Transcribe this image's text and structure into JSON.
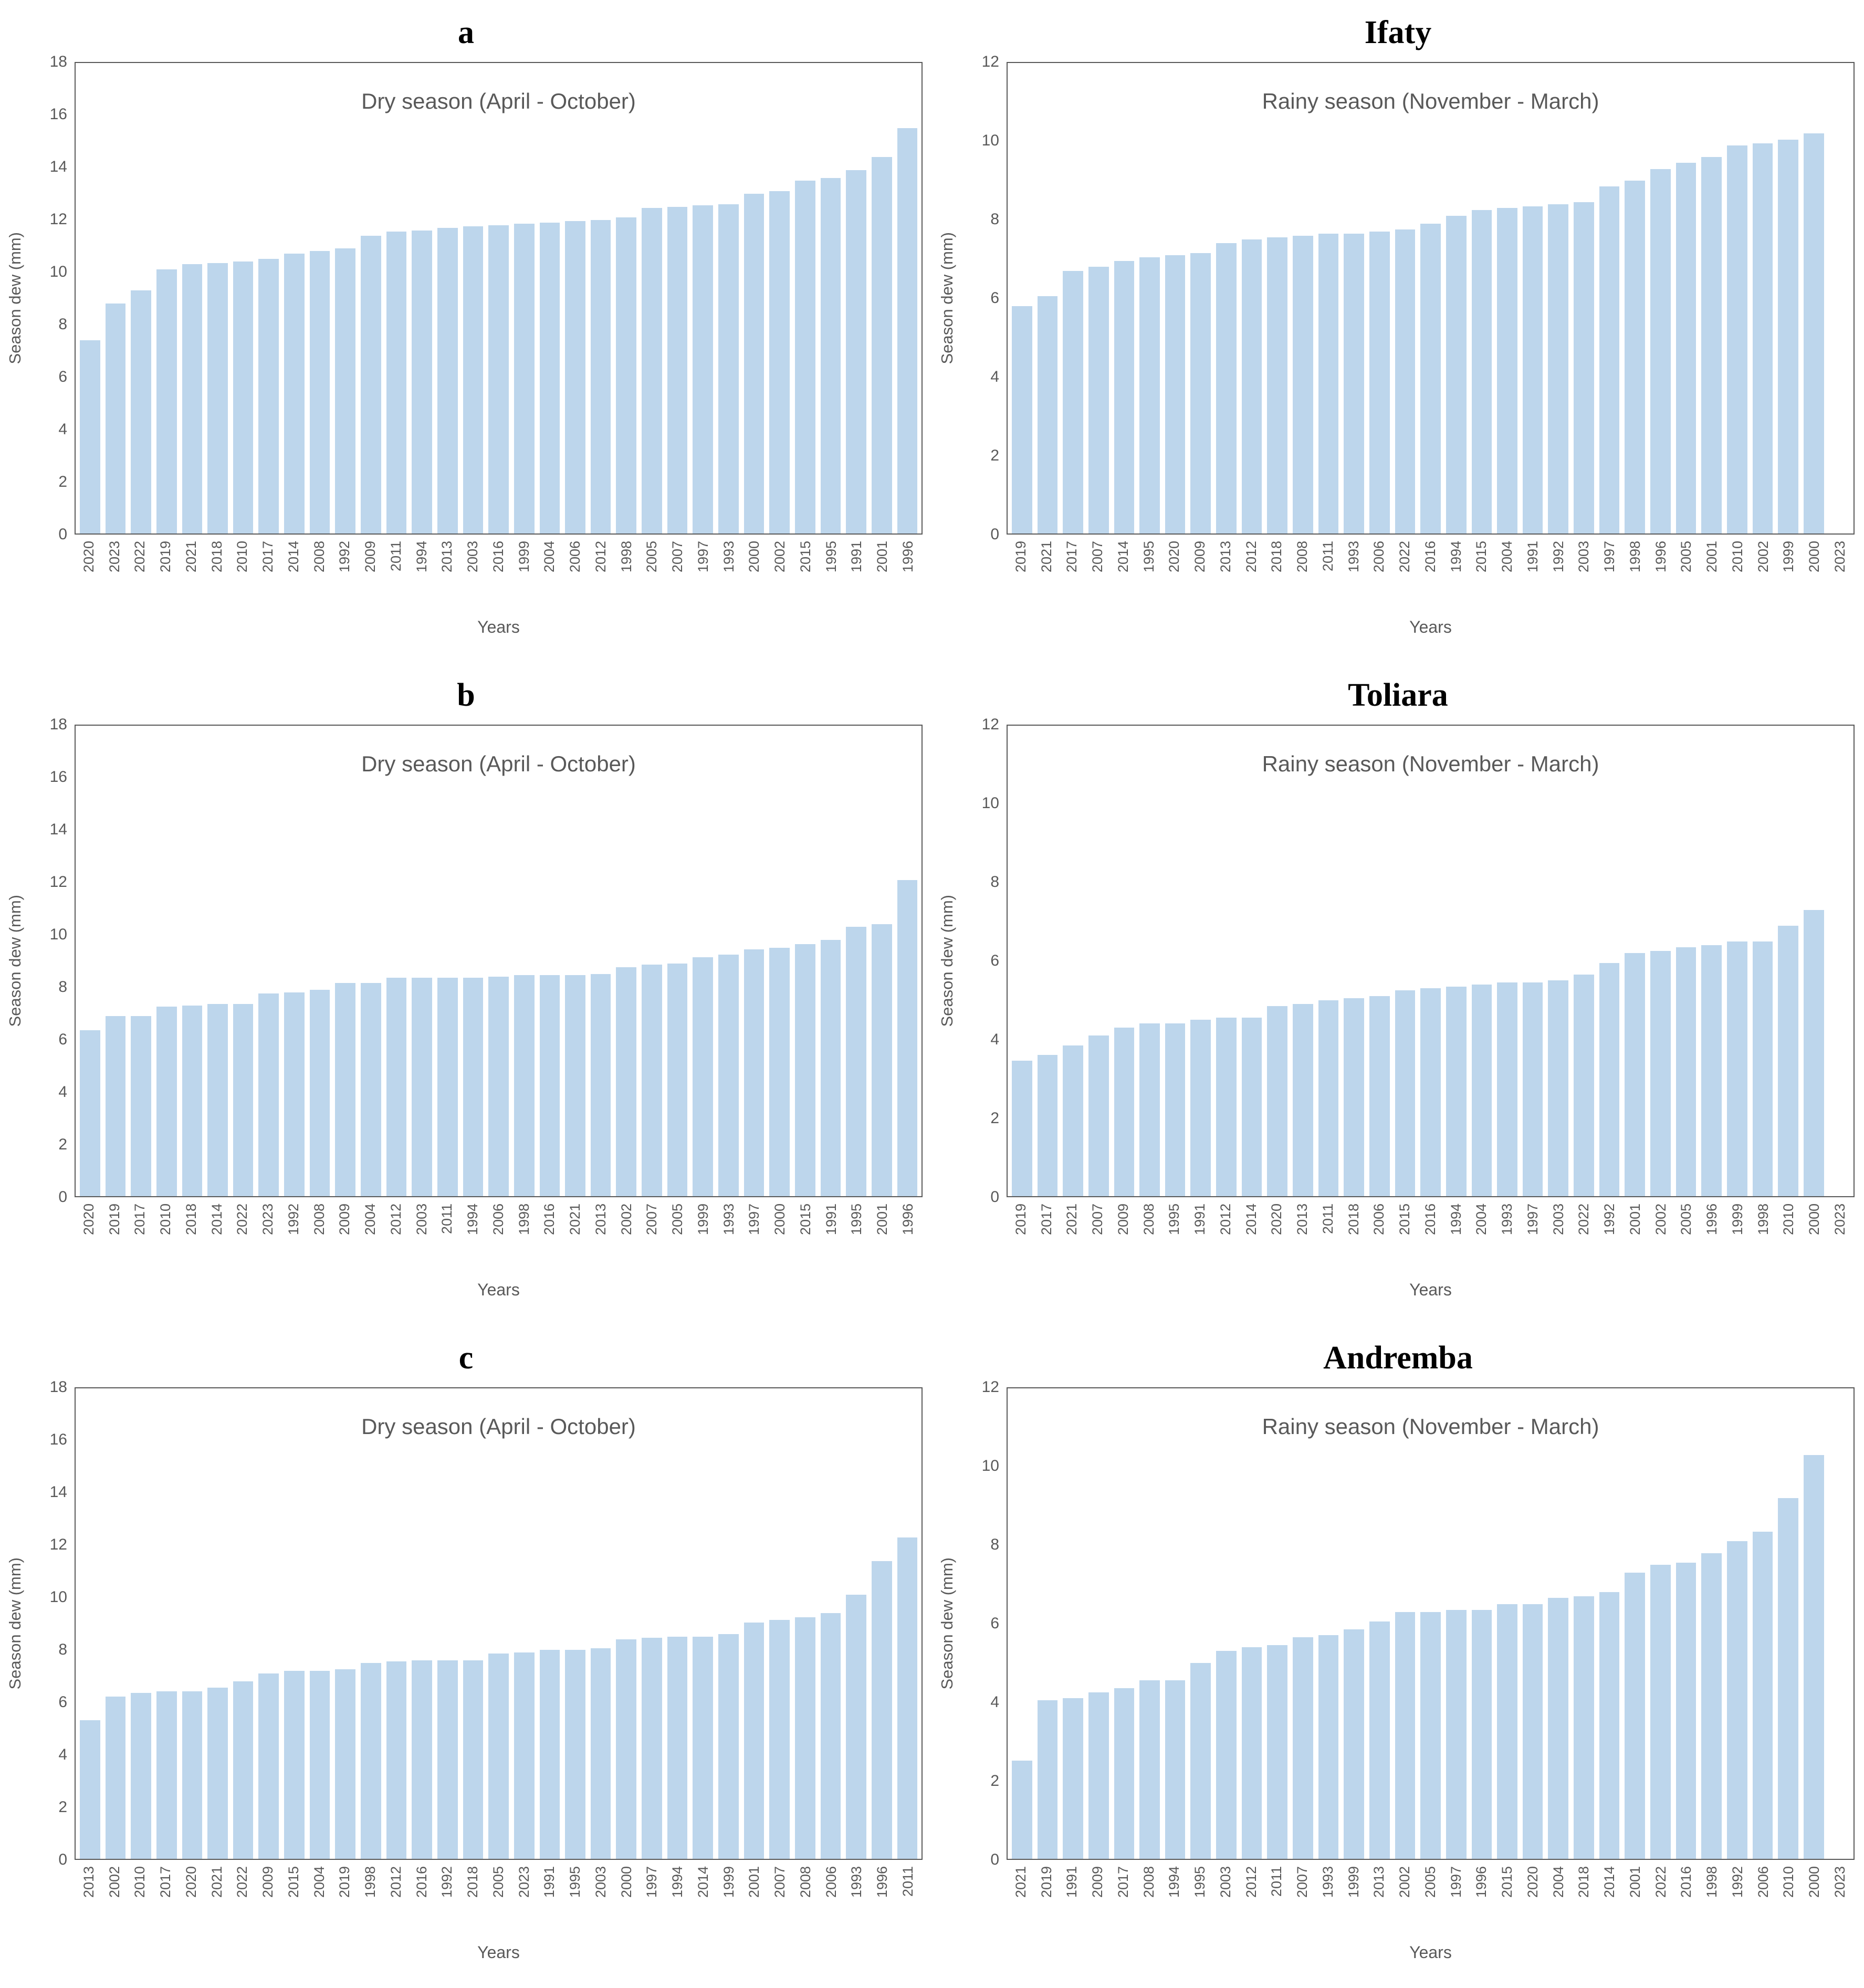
{
  "colors": {
    "bar_fill": "#BDD6EC",
    "plot_border": "#595959",
    "label_gray": "#595959",
    "panel_title_black": "#000000"
  },
  "chart_data": [
    {
      "type": "bar",
      "panel_label": "a",
      "title": "Dry season (April - October)",
      "ylabel": "Season dew (mm)",
      "xlabel": "Years",
      "ylim": [
        0,
        18
      ],
      "yticks": [
        18,
        16,
        14,
        12,
        10,
        8,
        6,
        4,
        2,
        0
      ],
      "grid": false,
      "legend": false,
      "categories": [
        "2020",
        "2023",
        "2022",
        "2019",
        "2021",
        "2018",
        "2010",
        "2017",
        "2014",
        "2008",
        "1992",
        "2009",
        "2011",
        "1994",
        "2013",
        "2003",
        "2016",
        "1999",
        "2004",
        "2006",
        "2012",
        "1998",
        "2005",
        "2007",
        "1997",
        "1993",
        "2000",
        "2002",
        "2015",
        "1995",
        "1991",
        "2001",
        "1996"
      ],
      "values": [
        7.4,
        8.8,
        9.3,
        10.1,
        10.3,
        10.35,
        10.4,
        10.5,
        10.7,
        10.8,
        10.9,
        11.4,
        11.55,
        11.6,
        11.7,
        11.75,
        11.8,
        11.85,
        11.9,
        11.95,
        12.0,
        12.1,
        12.45,
        12.5,
        12.55,
        12.6,
        13.0,
        13.1,
        13.5,
        13.6,
        13.9,
        14.4,
        15.5
      ]
    },
    {
      "type": "bar",
      "panel_label": "Ifaty",
      "title": "Rainy season (November - March)",
      "ylabel": "Season dew (mm)",
      "xlabel": "Years",
      "ylim": [
        0,
        12
      ],
      "yticks": [
        12,
        10,
        8,
        6,
        4,
        2,
        0
      ],
      "grid": false,
      "legend": false,
      "categories": [
        "2019",
        "2021",
        "2017",
        "2007",
        "2014",
        "1995",
        "2020",
        "2009",
        "2013",
        "2012",
        "2018",
        "2008",
        "2011",
        "1993",
        "2006",
        "2022",
        "2016",
        "1994",
        "2015",
        "2004",
        "1991",
        "1992",
        "2003",
        "1997",
        "1998",
        "1996",
        "2005",
        "2001",
        "2010",
        "2002",
        "1999",
        "2000",
        "2023"
      ],
      "values": [
        5.8,
        6.05,
        6.7,
        6.8,
        6.95,
        7.05,
        7.1,
        7.15,
        7.4,
        7.5,
        7.55,
        7.6,
        7.65,
        7.65,
        7.7,
        7.75,
        7.9,
        8.1,
        8.25,
        8.3,
        8.35,
        8.4,
        8.45,
        8.85,
        9.0,
        9.3,
        9.45,
        9.6,
        9.9,
        9.95,
        10.05,
        10.2,
        null
      ]
    },
    {
      "type": "bar",
      "panel_label": "b",
      "title": "Dry season (April - October)",
      "ylabel": "Season dew (mm)",
      "xlabel": "Years",
      "ylim": [
        0,
        18
      ],
      "yticks": [
        18,
        16,
        14,
        12,
        10,
        8,
        6,
        4,
        2,
        0
      ],
      "grid": false,
      "legend": false,
      "categories": [
        "2020",
        "2019",
        "2017",
        "2010",
        "2018",
        "2014",
        "2022",
        "2023",
        "1992",
        "2008",
        "2009",
        "2004",
        "2012",
        "2003",
        "2011",
        "1994",
        "2006",
        "1998",
        "2016",
        "2021",
        "2013",
        "2002",
        "2007",
        "2005",
        "1999",
        "1993",
        "1997",
        "2000",
        "2015",
        "1991",
        "1995",
        "2001",
        "1996"
      ],
      "values": [
        6.35,
        6.9,
        6.9,
        7.25,
        7.3,
        7.35,
        7.35,
        7.75,
        7.8,
        7.9,
        8.15,
        8.15,
        8.35,
        8.35,
        8.35,
        8.35,
        8.4,
        8.45,
        8.45,
        8.45,
        8.5,
        8.75,
        8.85,
        8.9,
        9.15,
        9.25,
        9.45,
        9.5,
        9.65,
        9.8,
        10.3,
        10.4,
        12.1
      ]
    },
    {
      "type": "bar",
      "panel_label": "Toliara",
      "title": "Rainy season (November - March)",
      "ylabel": "Season dew (mm)",
      "xlabel": "Years",
      "ylim": [
        0,
        12
      ],
      "yticks": [
        12,
        10,
        8,
        6,
        4,
        2,
        0
      ],
      "grid": false,
      "legend": false,
      "categories": [
        "2019",
        "2017",
        "2021",
        "2007",
        "2009",
        "2008",
        "1995",
        "1991",
        "2012",
        "2014",
        "2020",
        "2013",
        "2011",
        "2018",
        "2006",
        "2015",
        "2016",
        "1994",
        "2004",
        "1993",
        "1997",
        "2003",
        "2022",
        "1992",
        "2001",
        "2002",
        "2005",
        "1996",
        "1999",
        "1998",
        "2010",
        "2000",
        "2023"
      ],
      "values": [
        3.45,
        3.6,
        3.85,
        4.1,
        4.3,
        4.4,
        4.4,
        4.5,
        4.55,
        4.55,
        4.85,
        4.9,
        5.0,
        5.05,
        5.1,
        5.25,
        5.3,
        5.35,
        5.4,
        5.45,
        5.45,
        5.5,
        5.65,
        5.95,
        6.2,
        6.25,
        6.35,
        6.4,
        6.5,
        6.5,
        6.9,
        7.3,
        null
      ]
    },
    {
      "type": "bar",
      "panel_label": "c",
      "title": "Dry season (April - October)",
      "ylabel": "Season dew (mm)",
      "xlabel": "Years",
      "ylim": [
        0,
        18
      ],
      "yticks": [
        18,
        16,
        14,
        12,
        10,
        8,
        6,
        4,
        2,
        0
      ],
      "grid": false,
      "legend": false,
      "categories": [
        "2013",
        "2002",
        "2010",
        "2017",
        "2020",
        "2021",
        "2022",
        "2009",
        "2015",
        "2004",
        "2019",
        "1998",
        "2012",
        "2016",
        "1992",
        "2018",
        "2005",
        "2023",
        "1991",
        "1995",
        "2003",
        "2000",
        "1997",
        "1994",
        "2014",
        "1999",
        "2001",
        "2007",
        "2008",
        "2006",
        "1993",
        "1996",
        "2011"
      ],
      "values": [
        5.3,
        6.2,
        6.35,
        6.4,
        6.4,
        6.55,
        6.8,
        7.1,
        7.2,
        7.2,
        7.25,
        7.5,
        7.55,
        7.6,
        7.6,
        7.6,
        7.85,
        7.9,
        8.0,
        8.0,
        8.05,
        8.4,
        8.45,
        8.5,
        8.5,
        8.6,
        9.05,
        9.15,
        9.25,
        9.4,
        10.1,
        11.4,
        12.3
      ]
    },
    {
      "type": "bar",
      "panel_label": "Andremba",
      "title": "Rainy season (November - March)",
      "ylabel": "Season dew (mm)",
      "xlabel": "Years",
      "ylim": [
        0,
        12
      ],
      "yticks": [
        12,
        10,
        8,
        6,
        4,
        2,
        0
      ],
      "grid": false,
      "legend": false,
      "categories": [
        "2021",
        "2019",
        "1991",
        "2009",
        "2017",
        "2008",
        "1994",
        "1995",
        "2003",
        "2012",
        "2011",
        "2007",
        "1993",
        "1999",
        "2013",
        "2002",
        "2005",
        "1997",
        "1996",
        "2015",
        "2020",
        "2004",
        "2018",
        "2014",
        "2001",
        "2022",
        "2016",
        "1998",
        "1992",
        "2006",
        "2010",
        "2000",
        "2023"
      ],
      "values": [
        2.5,
        4.05,
        4.1,
        4.25,
        4.35,
        4.55,
        4.55,
        5.0,
        5.3,
        5.4,
        5.45,
        5.65,
        5.7,
        5.85,
        6.05,
        6.3,
        6.3,
        6.35,
        6.35,
        6.5,
        6.5,
        6.65,
        6.7,
        6.8,
        7.3,
        7.5,
        7.55,
        7.8,
        8.1,
        8.35,
        9.2,
        10.3,
        null
      ]
    }
  ]
}
